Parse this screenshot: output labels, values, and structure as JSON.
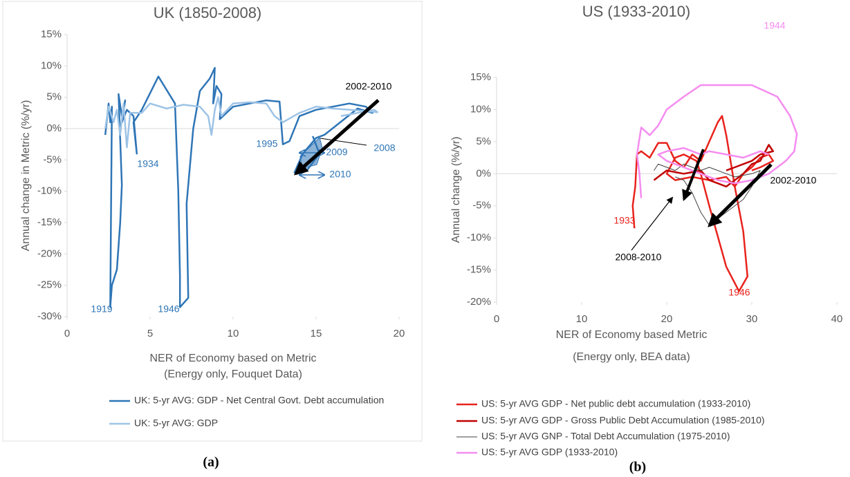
{
  "chart_data": [
    {
      "type": "line",
      "title": "UK (1850-2008)",
      "xlabel": [
        "NER of Economy based on Metric",
        "(Energy only, Fouquet Data)"
      ],
      "ylabel": "Annual change in Metric (%/yr)",
      "xlim": [
        0,
        20
      ],
      "xticks": [
        0,
        5,
        10,
        15,
        20
      ],
      "ylim": [
        -30,
        15
      ],
      "yticks": [
        {
          "value": -30,
          "label": "-30%"
        },
        {
          "value": -25,
          "label": "-25%"
        },
        {
          "value": -20,
          "label": "-20%"
        },
        {
          "value": -15,
          "label": "-15%"
        },
        {
          "value": -10,
          "label": "-10%"
        },
        {
          "value": -5,
          "label": "-5%"
        },
        {
          "value": 0,
          "label": "0%"
        },
        {
          "value": 5,
          "label": "5%"
        },
        {
          "value": 10,
          "label": "10%"
        },
        {
          "value": 15,
          "label": "15%"
        }
      ],
      "series": [
        {
          "name": "UK: 5-yr AVG: GDP - Net Central Govt. Debt accumulation",
          "color": "#2e75b6",
          "width": 2.5,
          "x": [
            2.3,
            2.5,
            2.6,
            2.7,
            2.6,
            2.7,
            3.0,
            3.2,
            3.3,
            3.1,
            3.3,
            3.5,
            3.3,
            3.6,
            4.0,
            4.2,
            4.0,
            4.5,
            5.5,
            6.5,
            6.7,
            6.8,
            6.8,
            7.3,
            7.2,
            7.6,
            8.0,
            8.6,
            8.9,
            8.8,
            9.0,
            9.3,
            9.2,
            9.4,
            10,
            11,
            12,
            12.8,
            13.0,
            13.4,
            14,
            15,
            16,
            17,
            18,
            18.4,
            17.5,
            15.5,
            15,
            14.2,
            13.7,
            14.5,
            15.2,
            14.8
          ],
          "values": [
            -1,
            4,
            1,
            3.5,
            -28.5,
            -25,
            -22.5,
            -15,
            -9,
            5.5,
            2,
            4.5,
            1,
            3,
            2,
            -4,
            1,
            3,
            8.3,
            4,
            -10,
            -23.5,
            -28.5,
            -27,
            -12,
            0,
            6,
            8,
            9.7,
            4,
            6.8,
            5.5,
            1.5,
            2,
            3.5,
            4,
            4.5,
            4.3,
            -2.5,
            -2,
            2,
            3,
            3.5,
            4,
            3.5,
            2.5,
            3.2,
            -1,
            -1.5,
            -4,
            -7,
            -6.5,
            -4,
            -1.2
          ]
        },
        {
          "name": "UK: 5-yr AVG: GDP",
          "color": "#9dc3e6",
          "width": 2.5,
          "x": [
            2.3,
            2.5,
            2.8,
            3.0,
            3.2,
            3.4,
            3.6,
            3.8,
            4.5,
            5,
            6,
            7,
            8,
            8.5,
            8.7,
            8.9,
            9.1,
            9.3,
            10,
            11,
            12,
            12.5,
            13,
            14,
            15,
            16,
            17,
            18,
            18.7,
            18.5,
            17.5,
            16.5
          ],
          "values": [
            0,
            3.5,
            1,
            3,
            -1,
            4,
            -3,
            2.5,
            2.5,
            4,
            3.2,
            3.8,
            3.5,
            2,
            -1,
            3,
            5,
            2,
            4,
            4.2,
            4,
            2,
            1,
            2.5,
            3.5,
            3.2,
            3,
            2.8,
            2.6,
            3,
            2.5,
            2
          ]
        }
      ],
      "annotations": [
        {
          "text": "1919",
          "color": "#2e75b6"
        },
        {
          "text": "1946",
          "color": "#2e75b6"
        },
        {
          "text": "1934",
          "color": "#2e75b6"
        },
        {
          "text": "1995",
          "color": "#2e75b6"
        },
        {
          "text": "2009",
          "color": "#2e75b6"
        },
        {
          "text": "2008",
          "color": "#2e75b6"
        },
        {
          "text": "2010",
          "color": "#2e75b6"
        },
        {
          "text": "2002-2010",
          "color": "#000000"
        }
      ]
    },
    {
      "type": "line",
      "title": "US (1933-2010)",
      "xlabel": [
        "NER of Economy based Metric",
        "(Energy only, BEA data)"
      ],
      "ylabel": "Annual change (%/yr)",
      "xlim": [
        0,
        40
      ],
      "xticks": [
        0,
        10,
        20,
        30,
        40
      ],
      "ylim": [
        -20,
        15
      ],
      "yticks": [
        {
          "value": -20,
          "label": "-20%"
        },
        {
          "value": -15,
          "label": "-15%"
        },
        {
          "value": -10,
          "label": "-10%"
        },
        {
          "value": -5,
          "label": "-5%"
        },
        {
          "value": 0,
          "label": "0%"
        },
        {
          "value": 5,
          "label": "5%"
        },
        {
          "value": 10,
          "label": "10%"
        },
        {
          "value": 15,
          "label": "15%"
        }
      ],
      "series": [
        {
          "name": "US: 5-yr AVG GDP - Net public debt accumulation (1933-2010)",
          "color": "#e8221c",
          "width": 2.5,
          "x": [
            16.2,
            16,
            16.3,
            16.5,
            17,
            18,
            19,
            20,
            21,
            22,
            23,
            24,
            25,
            26,
            26.5,
            27,
            28,
            29,
            29.5,
            28.5,
            27,
            25,
            24,
            23.5,
            22,
            21,
            20,
            21,
            23,
            25,
            27,
            28,
            29,
            30,
            31,
            32,
            32.5,
            31,
            30
          ],
          "values": [
            -8.5,
            -5,
            -2,
            3,
            3.5,
            2.5,
            4.8,
            4.8,
            2,
            1,
            3,
            2,
            5,
            8,
            9,
            6,
            -2,
            -9,
            -16,
            -18.3,
            -14.5,
            -5,
            0,
            2,
            3,
            2.5,
            0,
            -1,
            -0.5,
            -1,
            -0.5,
            -2,
            0,
            1,
            2.5,
            3,
            2,
            1,
            0.5
          ]
        },
        {
          "name": "US: 5-yr AVG GDP - Gross Public Debt Accumulation (1985-2010)",
          "color": "#c00000",
          "width": 2.5,
          "x": [
            18.5,
            19,
            20,
            22,
            24,
            25,
            26,
            27,
            28,
            29,
            30,
            31,
            32,
            32.5,
            31,
            30,
            28,
            27
          ],
          "values": [
            -1,
            -0.5,
            0.5,
            0,
            0.5,
            -1,
            -1.5,
            -2,
            -1,
            0,
            1.5,
            2,
            4.5,
            3.5,
            3,
            2,
            1,
            0.5
          ]
        },
        {
          "name": "US: 5-yr AVG GNP - Total Debt Accumulation (1975-2010)",
          "color": "#404040",
          "width": 1,
          "x": [
            18.5,
            19,
            20,
            21,
            22,
            23,
            24,
            25,
            26,
            27,
            28,
            30,
            31,
            30,
            29,
            27,
            25,
            24,
            23,
            22,
            21
          ],
          "values": [
            0.5,
            1.5,
            1,
            0.5,
            1.5,
            1,
            0.5,
            1,
            0.5,
            0,
            -0.5,
            0,
            0.5,
            -2,
            -4,
            -6,
            -8,
            -6,
            -3,
            -1,
            -0.5
          ]
        },
        {
          "name": "US: 5-yr AVG GDP (1933-2010)",
          "color": "#f58cf0",
          "width": 2.5,
          "x": [
            17,
            16.8,
            16.5,
            17,
            18,
            19,
            20,
            22,
            24,
            27,
            30,
            33,
            34.5,
            35.3,
            35,
            34,
            32,
            30,
            28,
            26,
            24,
            22,
            20,
            19,
            20,
            22,
            24,
            25,
            27,
            29,
            31,
            32
          ],
          "values": [
            -3.8,
            0,
            3,
            7.2,
            6,
            7.5,
            10,
            12,
            13.8,
            13.8,
            13.8,
            12,
            9,
            6.2,
            3.5,
            2,
            0,
            -1,
            -1.5,
            -1,
            0,
            1,
            2,
            3,
            3.5,
            4,
            3,
            3.5,
            3,
            2.5,
            3.5,
            3
          ]
        }
      ],
      "annotations": [
        {
          "text": "1944",
          "color": "#f58cf0"
        },
        {
          "text": "1933",
          "color": "#e8221c"
        },
        {
          "text": "1946",
          "color": "#e8221c"
        },
        {
          "text": "2002-2010",
          "color": "#000000"
        },
        {
          "text": "2008-2010",
          "color": "#000000"
        }
      ]
    }
  ],
  "captions": [
    "(a)",
    "(b)"
  ]
}
